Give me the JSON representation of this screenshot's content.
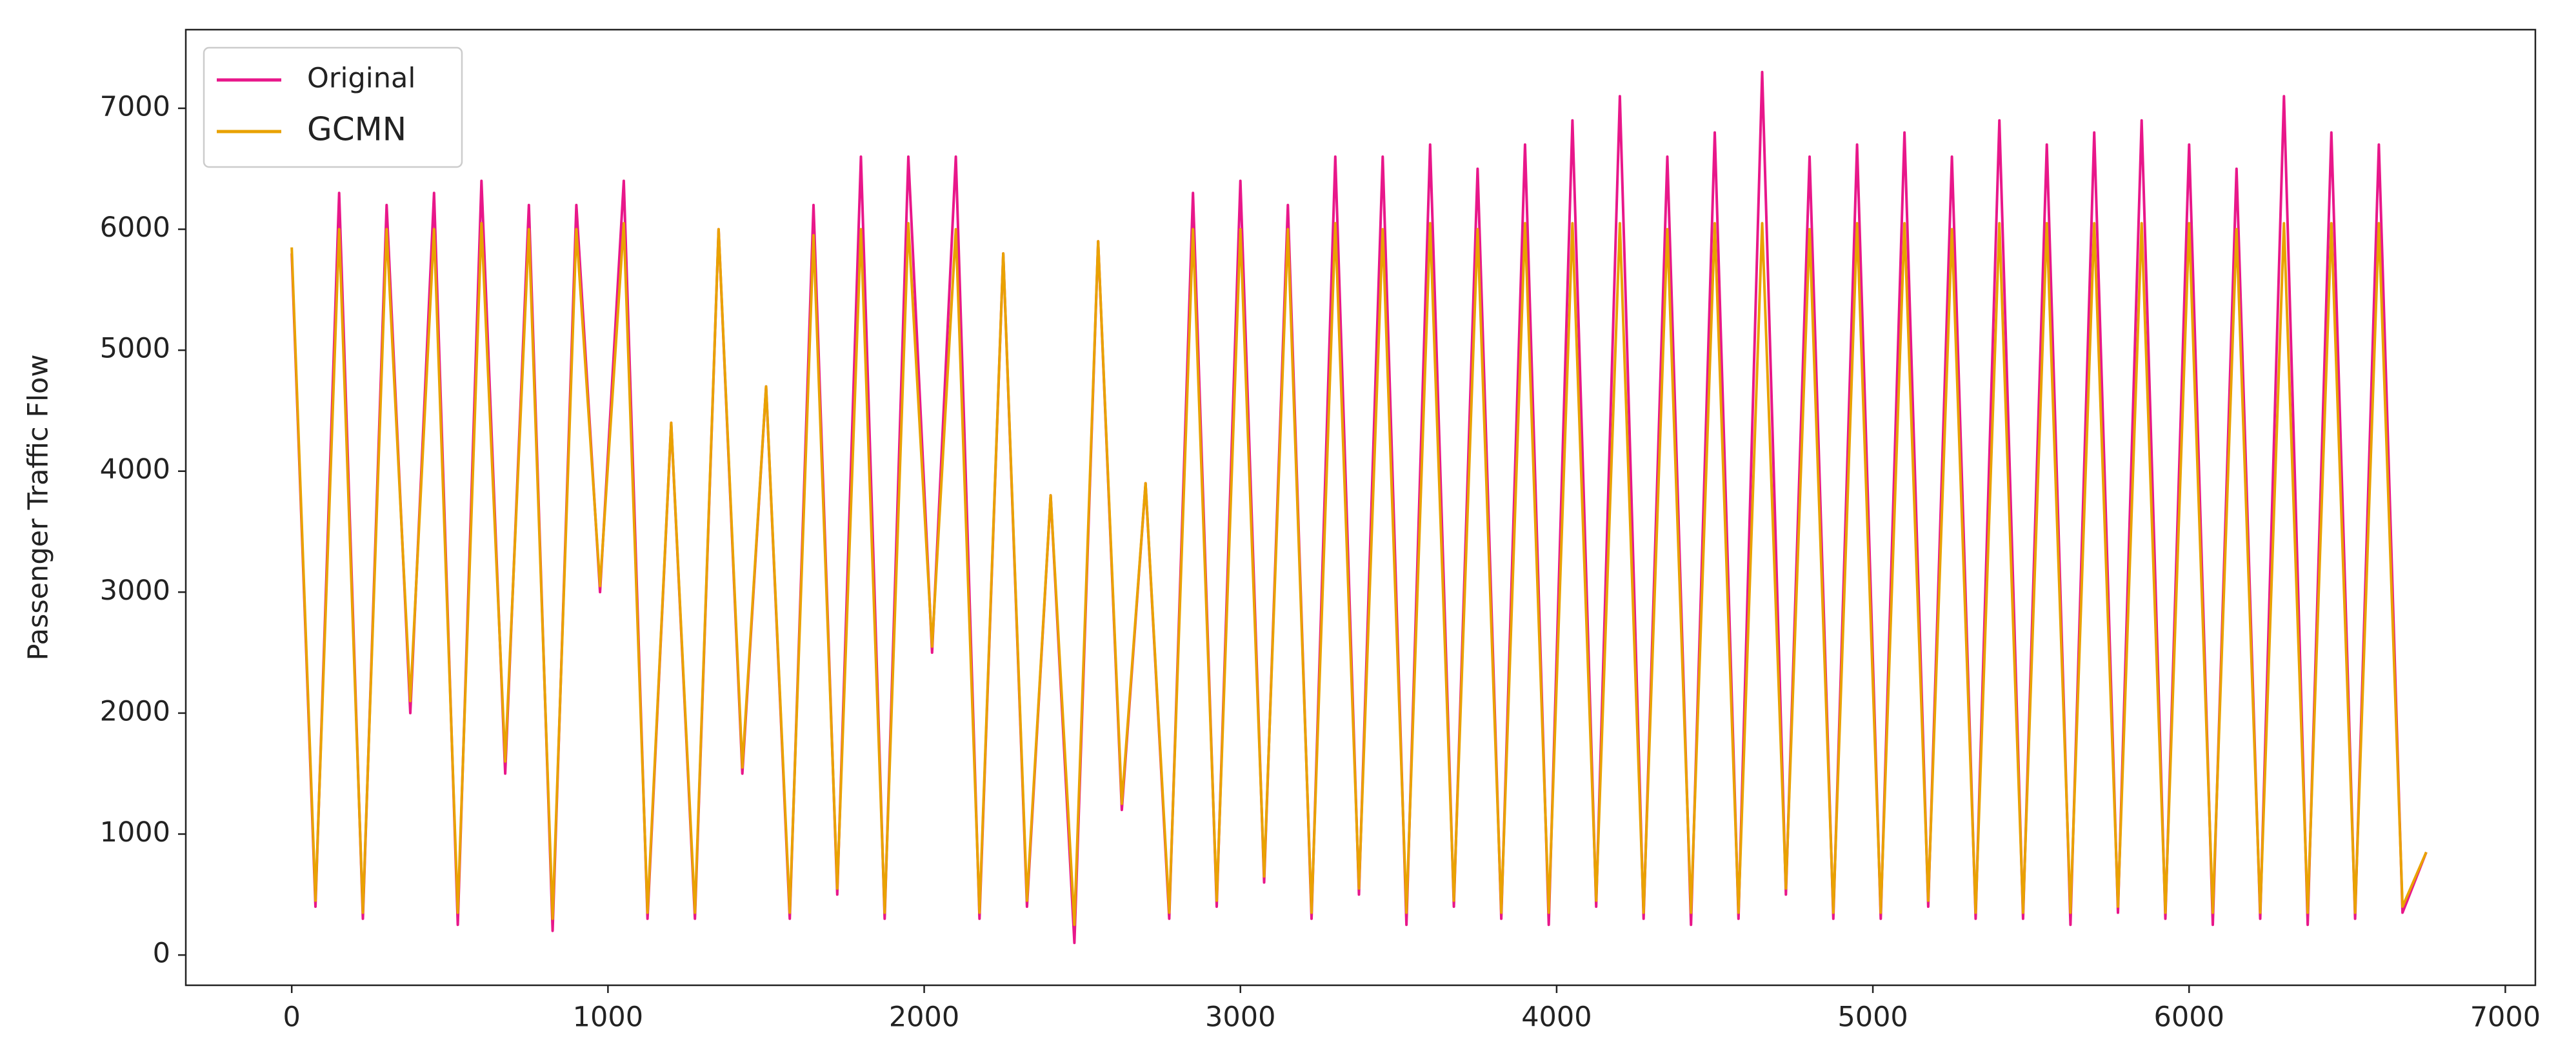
{
  "chart_data": {
    "type": "line",
    "y_label": "Passenger Traffic Flow",
    "legend": "upper left",
    "grid": false,
    "xlim": [
      -335,
      7095
    ],
    "ylim": [
      -250,
      7650
    ],
    "xticks": [
      0,
      1000,
      2000,
      3000,
      4000,
      5000,
      6000,
      7000
    ],
    "yticks": [
      0,
      1000,
      2000,
      3000,
      4000,
      5000,
      6000,
      7000
    ],
    "x": [
      0,
      75,
      150,
      225,
      300,
      375,
      450,
      525,
      600,
      675,
      750,
      825,
      900,
      975,
      1050,
      1125,
      1200,
      1275,
      1350,
      1425,
      1500,
      1575,
      1650,
      1725,
      1800,
      1875,
      1950,
      2025,
      2100,
      2175,
      2250,
      2325,
      2400,
      2475,
      2550,
      2625,
      2700,
      2775,
      2850,
      2925,
      3000,
      3075,
      3150,
      3225,
      3300,
      3375,
      3450,
      3525,
      3600,
      3675,
      3750,
      3825,
      3900,
      3975,
      4050,
      4125,
      4200,
      4275,
      4350,
      4425,
      4500,
      4575,
      4650,
      4725,
      4800,
      4875,
      4950,
      5025,
      5100,
      5175,
      5250,
      5325,
      5400,
      5475,
      5550,
      5625,
      5700,
      5775,
      5850,
      5925,
      6000,
      6075,
      6150,
      6225,
      6300,
      6375,
      6450,
      6525,
      6600,
      6675,
      6750
    ],
    "series": [
      {
        "name": "Original",
        "color": "#e8178a",
        "values": [
          5800,
          400,
          6300,
          300,
          6200,
          2000,
          6300,
          250,
          6400,
          1500,
          6200,
          200,
          6200,
          3000,
          6400,
          300,
          4400,
          300,
          6000,
          1500,
          4700,
          300,
          6200,
          500,
          6600,
          300,
          6600,
          2500,
          6600,
          300,
          5800,
          400,
          3800,
          100,
          5900,
          1200,
          3900,
          300,
          6300,
          400,
          6400,
          600,
          6200,
          300,
          6600,
          500,
          6600,
          250,
          6700,
          400,
          6500,
          300,
          6700,
          250,
          6900,
          400,
          7100,
          300,
          6600,
          250,
          6800,
          300,
          7300,
          500,
          6600,
          300,
          6700,
          300,
          6800,
          400,
          6600,
          300,
          6900,
          300,
          6700,
          250,
          6800,
          350,
          6900,
          300,
          6700,
          250,
          6500,
          300,
          7100,
          250,
          6800,
          300,
          6700,
          350,
          850
        ]
      },
      {
        "name": "GCMN",
        "color": "#e9a200",
        "values": [
          5850,
          450,
          6000,
          350,
          6000,
          2100,
          6000,
          350,
          6050,
          1600,
          6000,
          300,
          6000,
          3050,
          6050,
          350,
          4400,
          350,
          6000,
          1550,
          4700,
          350,
          5950,
          550,
          6000,
          350,
          6050,
          2550,
          6000,
          350,
          5800,
          450,
          3800,
          250,
          5900,
          1250,
          3900,
          350,
          6000,
          450,
          6000,
          650,
          6000,
          350,
          6050,
          550,
          6000,
          350,
          6050,
          450,
          6000,
          350,
          6050,
          350,
          6050,
          450,
          6050,
          350,
          6000,
          350,
          6050,
          350,
          6050,
          550,
          6000,
          350,
          6050,
          350,
          6050,
          450,
          6000,
          350,
          6050,
          350,
          6050,
          350,
          6050,
          400,
          6050,
          350,
          6050,
          350,
          6000,
          350,
          6050,
          350,
          6050,
          350,
          6050,
          400,
          850
        ]
      }
    ]
  }
}
